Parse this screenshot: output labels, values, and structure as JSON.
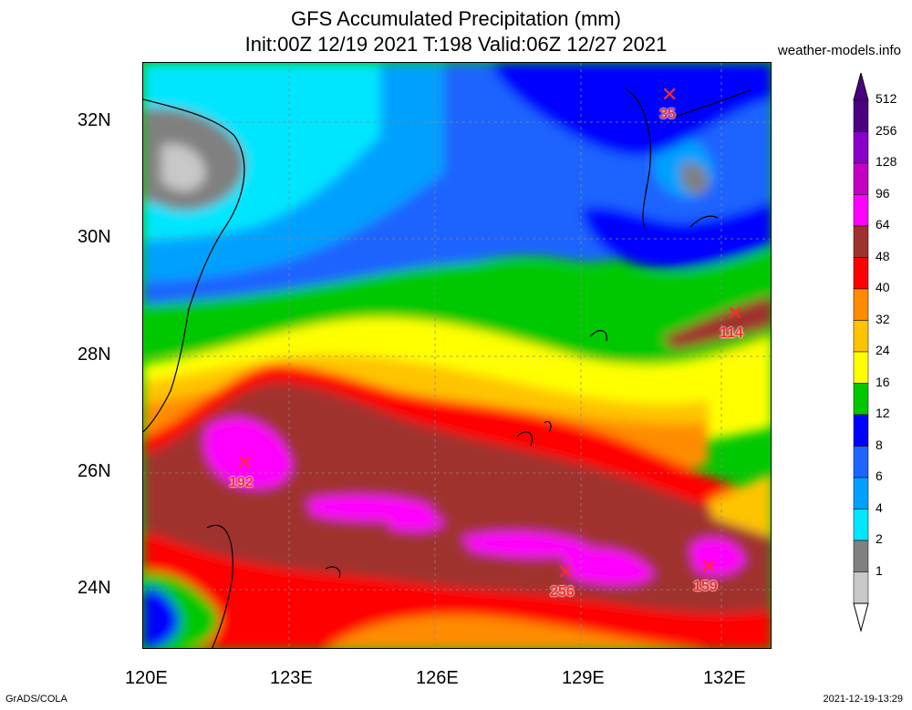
{
  "title": {
    "line1": "GFS Accumulated Precipitation (mm)",
    "line2": "Init:00Z 12/19 2021 T:198 Valid:06Z 12/27 2021"
  },
  "site": "weather-models.info",
  "lat_labels": [
    "32N",
    "30N",
    "28N",
    "26N",
    "24N"
  ],
  "lon_labels": [
    "120E",
    "123E",
    "126E",
    "129E",
    "132E"
  ],
  "colorbar": {
    "labels": [
      "512",
      "256",
      "128",
      "96",
      "64",
      "48",
      "40",
      "32",
      "24",
      "16",
      "12",
      "8",
      "6",
      "4",
      "2",
      "1"
    ],
    "colors": [
      "#4b0082",
      "#8a00c8",
      "#c400c4",
      "#ff00ff",
      "#a0322d",
      "#ff0000",
      "#ff8c00",
      "#ffc400",
      "#ffff00",
      "#00c800",
      "#0000ff",
      "#1e64ff",
      "#00a0ff",
      "#00e6ff",
      "#808080",
      "#c8c8c8"
    ]
  },
  "markers": [
    {
      "label": "35"
    },
    {
      "label": "114"
    },
    {
      "label": "192"
    },
    {
      "label": "256"
    },
    {
      "label": "159"
    }
  ],
  "footer": {
    "left": "GrADS/COLA",
    "right": "2021-12-19-13:29"
  }
}
